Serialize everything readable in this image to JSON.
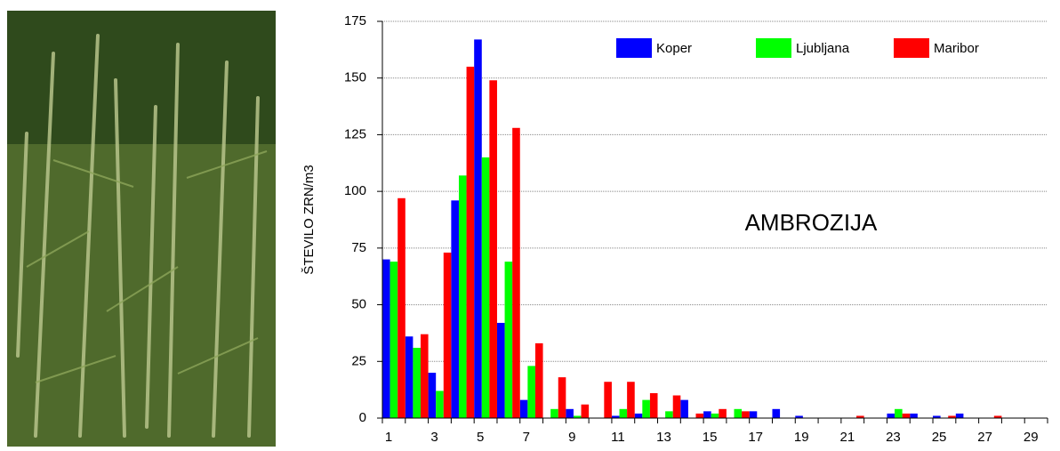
{
  "chart_data": {
    "type": "bar",
    "y_label": "ŠTEVILO ZRN/m3",
    "annotation": "AMBROZIJA",
    "categories": [
      "1",
      null,
      "3",
      null,
      "5",
      null,
      "7",
      null,
      "9",
      null,
      "11",
      null,
      "13",
      null,
      "15",
      null,
      "17",
      null,
      "19",
      null,
      "21",
      null,
      "23",
      null,
      "25",
      null,
      "27",
      null,
      "29"
    ],
    "series": [
      {
        "name": "Koper",
        "color": "#0000ff",
        "values": [
          70,
          36,
          20,
          96,
          167,
          42,
          8,
          0,
          4,
          0,
          1,
          2,
          0,
          8,
          3,
          0,
          3,
          4,
          1,
          0,
          0,
          0,
          2,
          2,
          1,
          2,
          0,
          0,
          0
        ]
      },
      {
        "name": "Ljubljana",
        "color": "#00ff00",
        "values": [
          69,
          31,
          12,
          107,
          115,
          69,
          23,
          4,
          1,
          0,
          4,
          8,
          3,
          0,
          2,
          4,
          0,
          0,
          0,
          0,
          0,
          0,
          4,
          0,
          0,
          0,
          0,
          0,
          0
        ]
      },
      {
        "name": "Maribor",
        "color": "#ff0000",
        "values": [
          97,
          37,
          73,
          155,
          149,
          128,
          33,
          18,
          6,
          16,
          16,
          11,
          10,
          2,
          4,
          3,
          0,
          0,
          0,
          0,
          1,
          0,
          2,
          0,
          1,
          0,
          1,
          0,
          0
        ]
      }
    ],
    "ylim": [
      0,
      175
    ],
    "yticks": [
      0,
      25,
      50,
      75,
      100,
      125,
      150,
      175
    ],
    "grid": true
  }
}
